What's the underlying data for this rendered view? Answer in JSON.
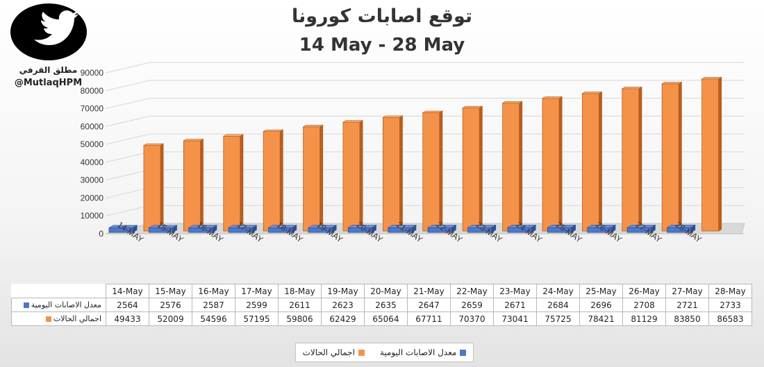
{
  "header": {
    "title": "توقع اصابات كورونا",
    "subtitle": "14 May - 28 May"
  },
  "brand": {
    "name": "مطلق القرفي",
    "handle": "@MutlaqHPM",
    "icon": "twitter-bird-icon"
  },
  "colors": {
    "orange": "#f5924a",
    "orange_dark": "#b85e1e",
    "blue": "#4f77c9",
    "blue_dark": "#2f4f8f",
    "grid": "#d6d6d6"
  },
  "chart_data": {
    "type": "bar",
    "title": "توقع اصابات كورونا",
    "subtitle": "14 May - 28 May",
    "axis_categories": [
      "14-MAY",
      "15-MAY",
      "16-MAY",
      "17-MAY",
      "18-MAY",
      "19-MAY",
      "20-MAY",
      "21-MAY",
      "22-MAY",
      "23-MAY",
      "24-MAY",
      "25-MAY",
      "26-MAY",
      "27-MAY",
      "28-MAY"
    ],
    "categories": [
      "14-May",
      "15-May",
      "16-May",
      "17-May",
      "18-May",
      "19-May",
      "20-May",
      "21-May",
      "22-May",
      "23-May",
      "24-May",
      "25-May",
      "26-May",
      "27-May",
      "28-May"
    ],
    "series": [
      {
        "name": "معدل الاصابات اليومية",
        "color": "#4f77c9",
        "values": [
          2564,
          2576,
          2587,
          2599,
          2611,
          2623,
          2635,
          2647,
          2659,
          2671,
          2684,
          2696,
          2708,
          2721,
          2733
        ]
      },
      {
        "name": "اجمالي الحالات",
        "color": "#f5924a",
        "values": [
          49433,
          52009,
          54596,
          57195,
          59806,
          62429,
          65064,
          67711,
          70370,
          73041,
          75725,
          78421,
          81129,
          83850,
          86583
        ]
      }
    ],
    "yticks": [
      0,
      10000,
      20000,
      30000,
      40000,
      50000,
      60000,
      70000,
      80000,
      90000
    ],
    "ylim": [
      0,
      90000
    ],
    "grid": true,
    "legend": "bottom"
  }
}
